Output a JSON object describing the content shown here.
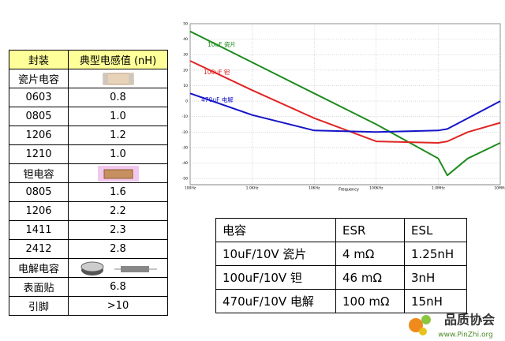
{
  "chart_data": {
    "type": "line",
    "x_label": "Frequency",
    "x": [
      100,
      1000,
      10000,
      100000,
      1000000,
      1400000,
      3000000,
      10000000
    ],
    "series": [
      {
        "name": "10uF 瓷片",
        "color": "#1e8c1e",
        "values": [
          45,
          25,
          5,
          -15,
          -37,
          -48,
          -37,
          -27
        ]
      },
      {
        "name": "100uF 钽",
        "color": "#e02424",
        "values": [
          26,
          7,
          -11,
          -26,
          -27,
          -26,
          -20,
          -14
        ]
      },
      {
        "name": "470uF 电解",
        "color": "#1414c8",
        "values": [
          5,
          -9,
          -19,
          -20,
          -19,
          -18,
          -11,
          0
        ]
      }
    ],
    "xscale": "log",
    "xlim": [
      100,
      10000000
    ],
    "xticks": [
      {
        "value": 100,
        "label": "100Hz"
      },
      {
        "value": 1000,
        "label": "1.0KHz"
      },
      {
        "value": 10000,
        "label": "10KHz"
      },
      {
        "value": 100000,
        "label": "100KHz"
      },
      {
        "value": 1000000,
        "label": "1.0MHz"
      },
      {
        "value": 10000000,
        "label": "10MHz"
      }
    ],
    "ylim": [
      -54,
      50
    ],
    "yticks": [
      50,
      40,
      30,
      20,
      10,
      0,
      -10,
      -20,
      -30,
      -40,
      -50
    ],
    "grid": true
  },
  "left_table": {
    "header": [
      "封装",
      "典型电感值 (nH)"
    ],
    "rows": [
      [
        "瓷片电容"
      ],
      [
        "0603",
        "0.8"
      ],
      [
        "0805",
        "1.0"
      ],
      [
        "1206",
        "1.2"
      ],
      [
        "1210",
        "1.0"
      ],
      [
        "钽电容"
      ],
      [
        "0805",
        "1.6"
      ],
      [
        "1206",
        "2.2"
      ],
      [
        "1411",
        "2.3"
      ],
      [
        "2412",
        "2.8"
      ],
      [
        "电解电容"
      ],
      [
        "表面贴",
        "6.8"
      ],
      [
        "引脚",
        ">10"
      ]
    ]
  },
  "right_table": {
    "header": [
      "电容",
      "ESR",
      "ESL"
    ],
    "rows": [
      [
        "10uF/10V 瓷片",
        "4 mΩ",
        "1.25nH"
      ],
      [
        "100uF/10V 钽",
        "46 mΩ",
        "3nH"
      ],
      [
        "470uF/10V 电解",
        "100 mΩ",
        "15nH"
      ]
    ]
  },
  "watermark": {
    "title": "品质协会",
    "url": "www.PinZhi.org"
  }
}
